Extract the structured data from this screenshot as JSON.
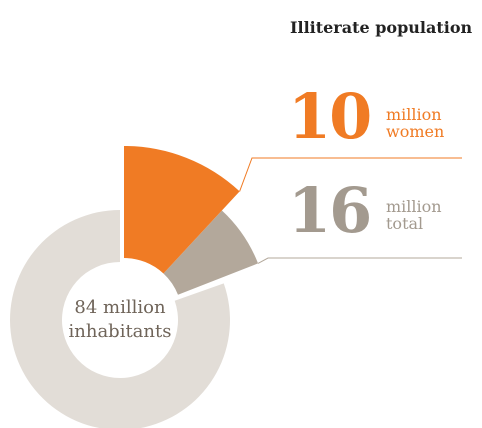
{
  "colors": {
    "women": "#f07b24",
    "total": "#b3a89b",
    "rest": "#e2ddd7",
    "total_text": "#a39a8f",
    "center_text": "#6f6459"
  },
  "title": "Illiterate population",
  "stats": {
    "women": {
      "value": "10",
      "unit_line1": "million",
      "unit_line2": "women"
    },
    "total": {
      "value": "16",
      "unit_line1": "million",
      "unit_line2": "total"
    }
  },
  "center": {
    "line1": "84 million",
    "line2": "inhabitants"
  },
  "chart_data": {
    "type": "pie",
    "title": "Illiterate population",
    "unit": "million",
    "total_population": 84,
    "slices": [
      {
        "label": "women",
        "value": 10
      },
      {
        "label": "total",
        "value": 16
      },
      {
        "label": "inhabitants",
        "value": 84
      }
    ]
  }
}
